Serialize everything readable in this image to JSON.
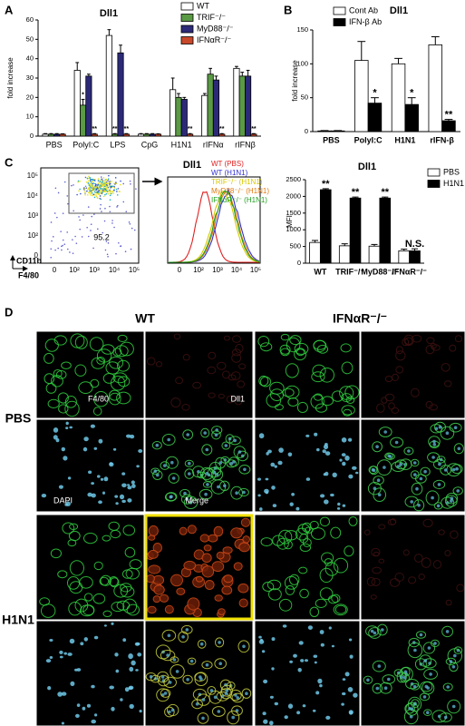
{
  "panel_labels": [
    "A",
    "B",
    "C",
    "D"
  ],
  "chart_data": [
    {
      "type": "bar",
      "title": "Dll1",
      "y_label": "fold increase",
      "categories": [
        "PBS",
        "PolyI:C",
        "LPS",
        "CpG",
        "H1N1",
        "rIFNα",
        "rIFNβ"
      ],
      "ylim": [
        0,
        60
      ],
      "yticks": [
        0,
        10,
        20,
        30,
        40,
        50,
        60
      ],
      "series": [
        {
          "name": "WT",
          "color": "#ffffff",
          "values": [
            1,
            34,
            52,
            1,
            24,
            21,
            35
          ],
          "errors": [
            0.3,
            4,
            3,
            0.3,
            6,
            1,
            1
          ],
          "significance": [
            null,
            null,
            null,
            null,
            null,
            null,
            null
          ]
        },
        {
          "name": "TRIF⁻/⁻",
          "color": "#5a9a45",
          "values": [
            1,
            16,
            1,
            1,
            20,
            32,
            31
          ],
          "errors": [
            0.3,
            3,
            0.3,
            0.3,
            2,
            3,
            2
          ],
          "significance": [
            null,
            "*",
            "**",
            null,
            null,
            null,
            null
          ]
        },
        {
          "name": "MyD88⁻/⁻",
          "color": "#2c2a78",
          "values": [
            1,
            31,
            43,
            1,
            19,
            29,
            31
          ],
          "errors": [
            0.3,
            1,
            4,
            0.3,
            1,
            2,
            3
          ],
          "significance": [
            null,
            null,
            null,
            null,
            null,
            null,
            null
          ]
        },
        {
          "name": "IFNαR⁻/⁻",
          "color": "#c8482a",
          "values": [
            1,
            1,
            1,
            1,
            1,
            1,
            1
          ],
          "errors": [
            0.2,
            0.3,
            0.3,
            0.2,
            0.3,
            0.3,
            0.3
          ],
          "significance": [
            null,
            "**",
            "**",
            null,
            "**",
            "**",
            "**"
          ]
        }
      ]
    },
    {
      "type": "bar",
      "title": "Dll1",
      "y_label": "fold increase",
      "categories": [
        "PBS",
        "PolyI:C",
        "H1N1",
        "rIFN-β"
      ],
      "ylim": [
        0,
        150
      ],
      "yticks": [
        0,
        50,
        100,
        150
      ],
      "series": [
        {
          "name": "Cont Ab",
          "color": "#ffffff",
          "values": [
            1,
            105,
            100,
            128
          ],
          "errors": [
            0.5,
            28,
            8,
            12
          ],
          "significance": [
            null,
            null,
            null,
            null
          ]
        },
        {
          "name": "IFN-β Ab",
          "color": "#000000",
          "values": [
            1,
            42,
            40,
            16
          ],
          "errors": [
            0.5,
            8,
            10,
            2
          ],
          "significance": [
            null,
            "*",
            "*",
            "**"
          ]
        }
      ]
    },
    {
      "type": "bar",
      "title": "Dll1",
      "y_label": "MFI",
      "categories": [
        "WT",
        "TRIF⁻/⁻",
        "MyD88⁻/⁻",
        "IFNαR⁻/⁻"
      ],
      "ylim": [
        0,
        2500
      ],
      "yticks": [
        0,
        500,
        1000,
        1500,
        2000,
        2500
      ],
      "series": [
        {
          "name": "PBS",
          "color": "#ffffff",
          "values": [
            620,
            520,
            510,
            370
          ],
          "errors": [
            60,
            60,
            50,
            50
          ],
          "significance": [
            null,
            null,
            null,
            null
          ]
        },
        {
          "name": "H1N1",
          "color": "#000000",
          "values": [
            2200,
            1950,
            1950,
            370
          ],
          "errors": [
            30,
            30,
            30,
            60
          ],
          "significance": [
            "**",
            "**",
            "**",
            "N.S."
          ]
        }
      ]
    }
  ],
  "flow": {
    "dot_plot": {
      "x_label": "F4/80",
      "y_label": "CD11b",
      "gate": "95.2",
      "x_ticks": [
        "0",
        "10²",
        "10³",
        "10⁴",
        "10⁵"
      ],
      "y_ticks": [
        "0",
        "10²",
        "10³",
        "10⁴",
        "10⁵"
      ]
    },
    "histogram": {
      "title": "Dll1",
      "legend": [
        {
          "name": "WT (PBS)",
          "color": "#e02020"
        },
        {
          "name": "WT (H1N1)",
          "color": "#3030d0"
        },
        {
          "name": "TRIF⁻/⁻ (H1N1)",
          "color": "#d8c800"
        },
        {
          "name": "MyD88⁻/⁻ (H1N1)",
          "color": "#e07a10"
        },
        {
          "name": "IFNαR⁻/⁻ (H1N1)",
          "color": "#20a020"
        }
      ],
      "x_ticks": [
        "0",
        "10²",
        "10³",
        "10⁴",
        "10⁵"
      ]
    }
  },
  "micrographs": {
    "columns": [
      "WT",
      "IFNαR⁻/⁻"
    ],
    "rows": [
      "PBS",
      "H1N1"
    ],
    "channels": [
      "F4/80",
      "Dll1",
      "DAPI",
      "Merge"
    ]
  }
}
